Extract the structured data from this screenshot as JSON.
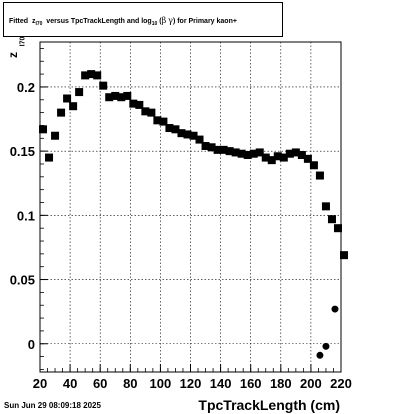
{
  "title": {
    "part1": "Fitted",
    "z": "z",
    "z_sub": "I70",
    "part2": "versus TpcTrackLength and log",
    "log_sub": "10",
    "paren_open": "(",
    "beta": "β",
    "gamma": "γ",
    "part3": ") for Primary kaon+"
  },
  "y_axis_label": {
    "z": "z",
    "sub": "I70"
  },
  "footer_timestamp": "Sun Jun 29 08:09:18 2025",
  "chart_data": {
    "type": "scatter",
    "xlabel": "TpcTrackLength (cm)",
    "ylabel": "zI70",
    "xlim": [
      20,
      220
    ],
    "ylim": [
      -0.022,
      0.235
    ],
    "grid": true,
    "x_ticks": [
      20,
      40,
      60,
      80,
      100,
      120,
      140,
      160,
      180,
      200,
      220
    ],
    "y_ticks": [
      0,
      0.05,
      0.1,
      0.15,
      0.2
    ],
    "y_tick_labels": [
      "0",
      "0.05",
      "0.1",
      "0.15",
      "0.2"
    ],
    "marker_color": "#000000",
    "series": [
      {
        "marker": "square",
        "points": [
          [
            22,
            0.167
          ],
          [
            26,
            0.145
          ],
          [
            30,
            0.162
          ],
          [
            34,
            0.18
          ],
          [
            38,
            0.191
          ],
          [
            42,
            0.185
          ],
          [
            46,
            0.196
          ],
          [
            50,
            0.209
          ],
          [
            54,
            0.21
          ],
          [
            58,
            0.209
          ],
          [
            62,
            0.201
          ],
          [
            66,
            0.192
          ],
          [
            70,
            0.193
          ],
          [
            74,
            0.192
          ],
          [
            78,
            0.193
          ],
          [
            82,
            0.187
          ],
          [
            86,
            0.186
          ],
          [
            90,
            0.181
          ],
          [
            94,
            0.18
          ],
          [
            98,
            0.174
          ],
          [
            102,
            0.173
          ],
          [
            106,
            0.168
          ],
          [
            110,
            0.167
          ],
          [
            114,
            0.164
          ],
          [
            118,
            0.163
          ],
          [
            122,
            0.162
          ],
          [
            126,
            0.159
          ],
          [
            130,
            0.154
          ],
          [
            134,
            0.153
          ],
          [
            138,
            0.151
          ],
          [
            142,
            0.151
          ],
          [
            146,
            0.15
          ],
          [
            150,
            0.149
          ],
          [
            154,
            0.148
          ],
          [
            158,
            0.147
          ],
          [
            162,
            0.148
          ],
          [
            166,
            0.149
          ],
          [
            170,
            0.145
          ],
          [
            174,
            0.143
          ],
          [
            178,
            0.146
          ],
          [
            182,
            0.145
          ],
          [
            186,
            0.148
          ],
          [
            190,
            0.149
          ],
          [
            194,
            0.147
          ],
          [
            198,
            0.144
          ],
          [
            202,
            0.139
          ],
          [
            206,
            0.131
          ],
          [
            210,
            0.107
          ],
          [
            214,
            0.097
          ],
          [
            218,
            0.09
          ],
          [
            222,
            0.069
          ]
        ]
      },
      {
        "marker": "circle",
        "points": [
          [
            206,
            -0.009
          ],
          [
            210,
            -0.002
          ],
          [
            216,
            0.027
          ]
        ]
      }
    ]
  }
}
